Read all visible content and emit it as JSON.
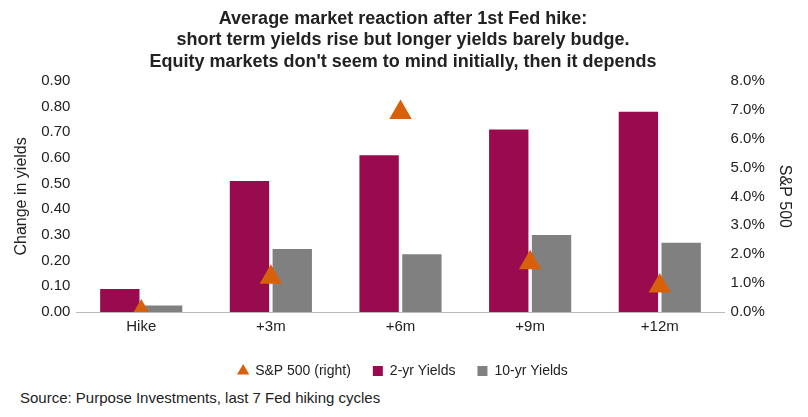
{
  "chart_data": {
    "type": "bar",
    "title": [
      "Average market reaction after 1st Fed hike:",
      "short term yields rise but longer yields barely budge.",
      "Equity markets don't seem to mind initially, then it depends"
    ],
    "source": "Source: Purpose Investments, last 7 Fed hiking cycles",
    "y_label": "Change in yields",
    "y2_label": "S&P 500",
    "categories": [
      "Hike",
      "+3m",
      "+6m",
      "+9m",
      "+12m"
    ],
    "series": [
      {
        "name": "2-yr Yields",
        "type": "bar",
        "color": "#990a4f",
        "values": [
          0.09,
          0.51,
          0.61,
          0.71,
          0.78
        ]
      },
      {
        "name": "10-yr Yields",
        "type": "bar",
        "color": "#808080",
        "values": [
          0.025,
          0.245,
          0.225,
          0.3,
          0.27
        ]
      },
      {
        "name": "S&P 500 (right)",
        "type": "scatter",
        "marker": "triangle",
        "color": "#d9600a",
        "axis": "y2",
        "values": [
          0.0,
          1.2,
          6.9,
          1.7,
          0.9
        ]
      }
    ],
    "ylim": [
      0,
      0.9
    ],
    "yticks": [
      {
        "value": 0,
        "label": "0.00"
      },
      {
        "value": 0.1,
        "label": "0.10"
      },
      {
        "value": 0.2,
        "label": "0.20"
      },
      {
        "value": 0.3,
        "label": "0.30"
      },
      {
        "value": 0.4,
        "label": "0.40"
      },
      {
        "value": 0.5,
        "label": "0.50"
      },
      {
        "value": 0.6,
        "label": "0.60"
      },
      {
        "value": 0.7,
        "label": "0.70"
      },
      {
        "value": 0.8,
        "label": "0.80"
      },
      {
        "value": 0.9,
        "label": "0.90"
      }
    ],
    "y2lim": [
      0,
      8
    ],
    "y2ticks": [
      {
        "value": 0,
        "label": "0.0%"
      },
      {
        "value": 1,
        "label": "1.0%"
      },
      {
        "value": 2,
        "label": "2.0%"
      },
      {
        "value": 3,
        "label": "3.0%"
      },
      {
        "value": 4,
        "label": "4.0%"
      },
      {
        "value": 5,
        "label": "5.0%"
      },
      {
        "value": 6,
        "label": "6.0%"
      },
      {
        "value": 7,
        "label": "7.0%"
      },
      {
        "value": 8,
        "label": "8.0%"
      }
    ],
    "grid": false,
    "legend": "bottom"
  }
}
